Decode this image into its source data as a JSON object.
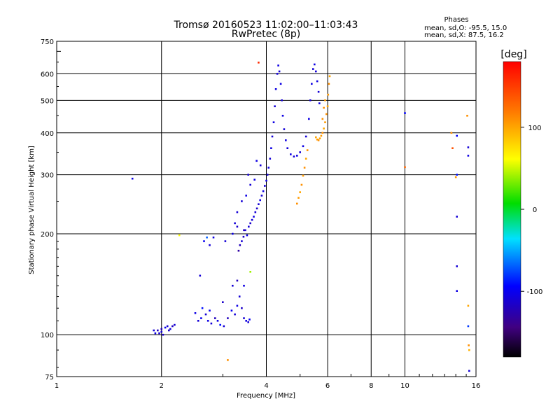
{
  "chart_data": {
    "type": "scatter",
    "title": "Tromsø 20160523 11:02:00–11:03:43",
    "subtitle": "RwPretec (8p)",
    "phase_box": {
      "heading": "Phases",
      "line_o": "mean, sd,O: -95.5, 15.0",
      "line_x": "mean, sd,X:  87.5, 16.2"
    },
    "xlabel": "Frequency [MHz]",
    "ylabel": "Stationary phase Virtual Height [km]",
    "x_scale": "log",
    "y_scale": "log",
    "xlim": [
      1,
      16
    ],
    "ylim": [
      75,
      750
    ],
    "x_ticks": [
      1,
      2,
      4,
      6,
      8,
      10,
      16
    ],
    "x_tick_labels": [
      "1",
      "2",
      "4",
      "6",
      "8",
      "10",
      "16"
    ],
    "y_ticks": [
      75,
      100,
      200,
      300,
      400,
      500,
      600,
      750
    ],
    "y_tick_labels": [
      "75",
      "100",
      "200",
      "300",
      "400",
      "500",
      "600",
      "750"
    ],
    "grid": true,
    "colorbar": {
      "label": "[deg]",
      "range": [
        -180,
        180
      ],
      "ticks": [
        100,
        0,
        -100
      ],
      "tick_labels": [
        "100",
        "0",
        "-100"
      ]
    },
    "series": [
      {
        "points": [
          [
            1.9,
            103,
            -110
          ],
          [
            1.92,
            101,
            -105
          ],
          [
            1.95,
            103,
            -120
          ],
          [
            1.97,
            101,
            -110
          ],
          [
            2.0,
            102,
            -110
          ],
          [
            2.02,
            100,
            -115
          ],
          [
            2.05,
            105,
            -100
          ],
          [
            2.08,
            106,
            -110
          ],
          [
            2.12,
            104,
            -105
          ],
          [
            2.15,
            106,
            -120
          ],
          [
            2.18,
            107,
            -110
          ],
          [
            2.1,
            103,
            -115
          ],
          [
            2.0,
            104,
            -120
          ],
          [
            2.5,
            116,
            -105
          ],
          [
            2.55,
            110,
            -110
          ],
          [
            2.6,
            112,
            -100
          ],
          [
            2.62,
            120,
            -90
          ],
          [
            2.68,
            115,
            -110
          ],
          [
            2.72,
            110,
            -105
          ],
          [
            2.78,
            108,
            -110
          ],
          [
            2.85,
            112,
            -120
          ],
          [
            2.9,
            110,
            -105
          ],
          [
            2.95,
            107,
            -90
          ],
          [
            3.02,
            106,
            -110
          ],
          [
            3.1,
            112,
            -120
          ],
          [
            3.18,
            118,
            -100
          ],
          [
            3.25,
            115,
            -110
          ],
          [
            3.3,
            122,
            -105
          ],
          [
            3.35,
            130,
            -110
          ],
          [
            3.4,
            120,
            -115
          ],
          [
            3.45,
            112,
            -110
          ],
          [
            3.5,
            110,
            -105
          ],
          [
            3.55,
            109,
            -110
          ],
          [
            3.58,
            111,
            -100
          ],
          [
            3.2,
            140,
            -110
          ],
          [
            3.3,
            145,
            -120
          ],
          [
            3.45,
            140,
            -105
          ],
          [
            2.58,
            150,
            -110
          ],
          [
            3.0,
            125,
            -115
          ],
          [
            2.75,
            118,
            -100
          ],
          [
            2.65,
            190,
            -100
          ],
          [
            2.75,
            185,
            -110
          ],
          [
            2.82,
            195,
            -105
          ],
          [
            2.7,
            195,
            -70
          ],
          [
            3.05,
            190,
            -110
          ],
          [
            3.2,
            200,
            -105
          ],
          [
            3.25,
            215,
            -110
          ],
          [
            3.3,
            210,
            -115
          ],
          [
            3.33,
            178,
            -130
          ],
          [
            3.36,
            185,
            -120
          ],
          [
            3.4,
            190,
            -110
          ],
          [
            3.44,
            196,
            -115
          ],
          [
            3.48,
            205,
            -110
          ],
          [
            3.52,
            198,
            -105
          ],
          [
            3.56,
            210,
            -110
          ],
          [
            3.6,
            215,
            -115
          ],
          [
            3.64,
            220,
            -110
          ],
          [
            3.68,
            225,
            -105
          ],
          [
            3.72,
            232,
            -110
          ],
          [
            3.76,
            238,
            -115
          ],
          [
            3.8,
            245,
            -110
          ],
          [
            3.84,
            252,
            -105
          ],
          [
            3.88,
            260,
            -110
          ],
          [
            3.92,
            268,
            -105
          ],
          [
            3.96,
            278,
            -110
          ],
          [
            4.0,
            288,
            -105
          ],
          [
            4.03,
            300,
            -110
          ],
          [
            4.06,
            315,
            -105
          ],
          [
            4.1,
            335,
            -110
          ],
          [
            4.13,
            360,
            -105
          ],
          [
            4.16,
            390,
            -110
          ],
          [
            4.2,
            430,
            -105
          ],
          [
            4.23,
            480,
            -110
          ],
          [
            4.26,
            540,
            -105
          ],
          [
            4.3,
            600,
            -110
          ],
          [
            4.33,
            635,
            -105
          ],
          [
            4.36,
            610,
            -110
          ],
          [
            4.4,
            560,
            -105
          ],
          [
            4.43,
            500,
            -110
          ],
          [
            4.46,
            450,
            -105
          ],
          [
            4.5,
            410,
            -110
          ],
          [
            4.55,
            380,
            -105
          ],
          [
            4.6,
            360,
            -110
          ],
          [
            4.7,
            345,
            -105
          ],
          [
            4.8,
            340,
            -110
          ],
          [
            4.9,
            342,
            -105
          ],
          [
            5.0,
            350,
            -110
          ],
          [
            5.1,
            365,
            -105
          ],
          [
            5.2,
            390,
            -110
          ],
          [
            5.3,
            440,
            -105
          ],
          [
            5.35,
            500,
            -110
          ],
          [
            5.4,
            560,
            -105
          ],
          [
            5.45,
            620,
            -110
          ],
          [
            5.5,
            640,
            -105
          ],
          [
            5.55,
            610,
            -110
          ],
          [
            5.6,
            570,
            -105
          ],
          [
            5.65,
            530,
            -110
          ],
          [
            5.68,
            490,
            -105
          ],
          [
            3.4,
            250,
            -110
          ],
          [
            3.5,
            260,
            -105
          ],
          [
            3.6,
            280,
            -110
          ],
          [
            3.7,
            290,
            -105
          ],
          [
            3.55,
            300,
            -110
          ],
          [
            3.75,
            330,
            -105
          ],
          [
            3.85,
            320,
            -110
          ],
          [
            3.3,
            232,
            -110
          ],
          [
            3.45,
            205,
            -120
          ],
          [
            1.65,
            292,
            -105
          ],
          [
            10.0,
            458,
            -95
          ],
          [
            14.1,
            225,
            -110
          ],
          [
            14.1,
            300,
            -90
          ],
          [
            14.1,
            392,
            -95
          ],
          [
            14.1,
            160,
            -110
          ],
          [
            14.1,
            135,
            -105
          ],
          [
            15.2,
            362,
            -110
          ],
          [
            15.2,
            342,
            -105
          ],
          [
            15.2,
            106,
            -80
          ],
          [
            15.3,
            78,
            -110
          ]
        ]
      },
      {
        "points": [
          [
            4.9,
            246,
            110
          ],
          [
            4.95,
            256,
            105
          ],
          [
            5.0,
            266,
            100
          ],
          [
            5.05,
            280,
            110
          ],
          [
            5.1,
            298,
            105
          ],
          [
            5.15,
            315,
            110
          ],
          [
            5.2,
            335,
            100
          ],
          [
            5.25,
            355,
            110
          ],
          [
            5.55,
            388,
            100
          ],
          [
            5.6,
            382,
            105
          ],
          [
            5.65,
            380,
            110
          ],
          [
            5.7,
            385,
            100
          ],
          [
            5.75,
            392,
            105
          ],
          [
            5.8,
            400,
            110
          ],
          [
            5.85,
            412,
            100
          ],
          [
            5.9,
            430,
            105
          ],
          [
            5.95,
            455,
            110
          ],
          [
            6.0,
            480,
            100
          ],
          [
            6.02,
            520,
            105
          ],
          [
            6.05,
            560,
            110
          ],
          [
            6.08,
            590,
            100
          ],
          [
            5.9,
            500,
            105
          ],
          [
            5.85,
            475,
            110
          ],
          [
            5.8,
            440,
            110
          ],
          [
            3.8,
            648,
            160
          ],
          [
            3.6,
            154,
            40
          ],
          [
            3.1,
            84,
            110
          ],
          [
            2.25,
            198,
            60
          ],
          [
            10.0,
            316,
            130
          ],
          [
            13.6,
            400,
            110
          ],
          [
            13.7,
            360,
            140
          ],
          [
            14.0,
            295,
            105
          ],
          [
            15.1,
            450,
            110
          ],
          [
            15.2,
            122,
            100
          ],
          [
            15.25,
            93,
            110
          ],
          [
            15.3,
            90,
            95
          ]
        ]
      }
    ]
  }
}
